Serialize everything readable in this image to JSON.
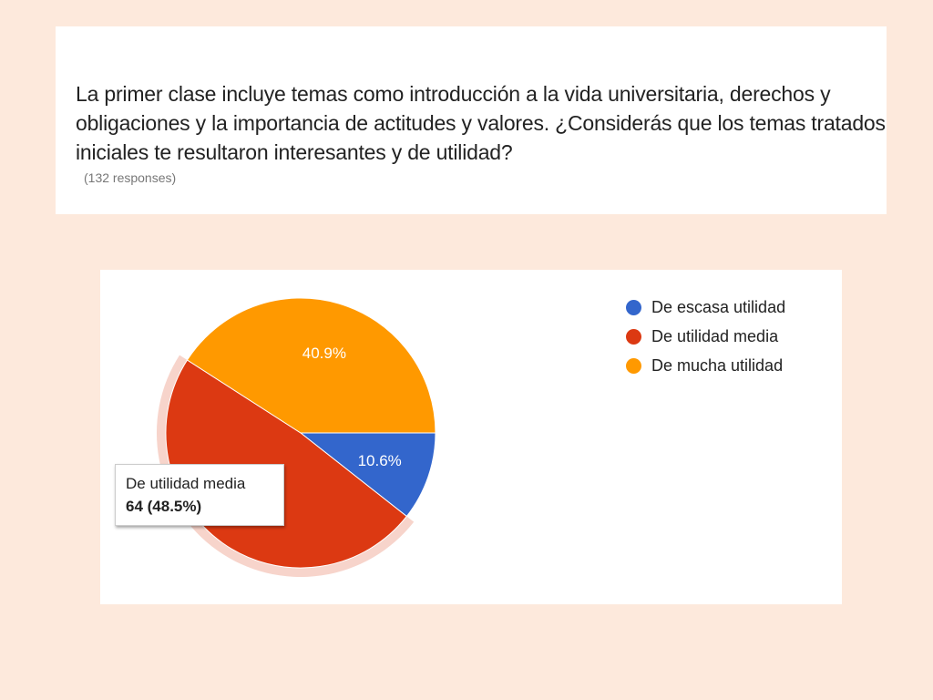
{
  "question": {
    "text": "La primer clase incluye temas como introducción a la vida universitaria, derechos y obligaciones y la importancia de actitudes y valores. ¿Considerás que los temas tratados iniciales te resultaron interesantes y de utilidad?",
    "responses": "(132 responses)"
  },
  "chart_data": {
    "type": "pie",
    "title": "",
    "total": 132,
    "slices": [
      {
        "name": "De escasa utilidad",
        "value": 14,
        "percent": 10.6,
        "label": "10.6%",
        "color": "#3366cc"
      },
      {
        "name": "De utilidad media",
        "value": 64,
        "percent": 48.5,
        "label": "",
        "color": "#dc3912"
      },
      {
        "name": "De mucha utilidad",
        "value": 54,
        "percent": 40.9,
        "label": "40.9%",
        "color": "#ff9900"
      }
    ],
    "highlighted_slice": "De utilidad media",
    "legend_position": "right",
    "tooltip": {
      "label": "De utilidad media",
      "value": "64 (48.5%)"
    }
  }
}
